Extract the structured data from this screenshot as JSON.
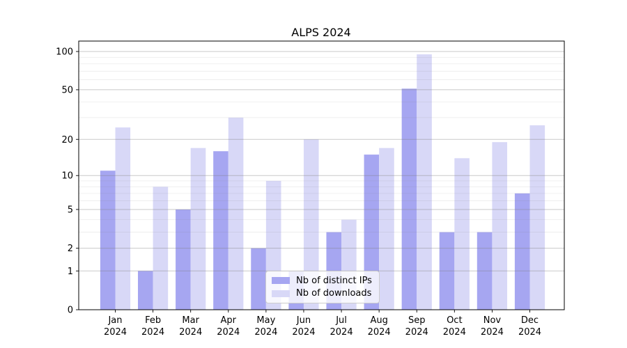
{
  "chart_data": {
    "type": "bar",
    "title": "ALPS 2024",
    "year_label": "2024",
    "categories": [
      "Jan",
      "Feb",
      "Mar",
      "Apr",
      "May",
      "Jun",
      "Jul",
      "Aug",
      "Sep",
      "Oct",
      "Nov",
      "Dec"
    ],
    "series": [
      {
        "name": "Nb of distinct IPs",
        "color": "#a6a6f1",
        "values": [
          11,
          1,
          5,
          16,
          2,
          1,
          3,
          15,
          51,
          3,
          3,
          7
        ]
      },
      {
        "name": "Nb of downloads",
        "color": "#d8d8f7",
        "values": [
          25,
          8,
          17,
          30,
          9,
          20,
          4,
          17,
          95,
          14,
          19,
          26
        ]
      }
    ],
    "yscale": "log1p",
    "ylim": [
      0,
      120
    ],
    "yticks": [
      0,
      1,
      2,
      5,
      10,
      20,
      50,
      100
    ],
    "minor_yticks": [
      3,
      4,
      6,
      7,
      8,
      9,
      30,
      40,
      60,
      70,
      80,
      90
    ],
    "grid": true,
    "legend_position": "lower center"
  }
}
